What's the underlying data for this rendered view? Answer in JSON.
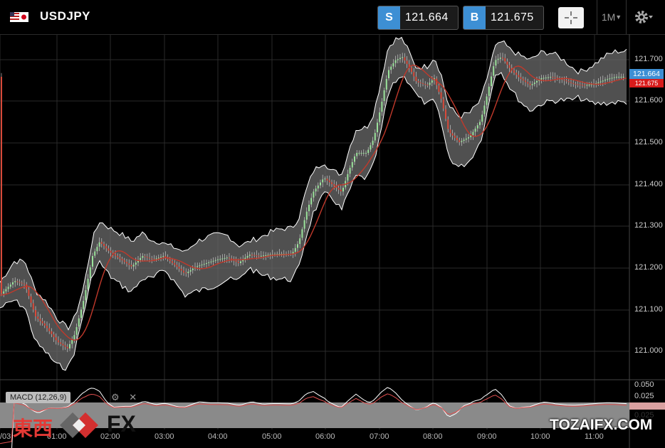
{
  "header": {
    "symbol": "USDJPY",
    "sell": {
      "tag": "S",
      "price": "121.664"
    },
    "buy": {
      "tag": "B",
      "price": "121.675"
    },
    "timeframe": "1M"
  },
  "chart": {
    "price_axis": [
      "121.700",
      "121.600",
      "121.500",
      "121.400",
      "121.300",
      "121.200",
      "121.100",
      "121.000"
    ],
    "current_sell_label": "121.664",
    "current_buy_label": "121.675",
    "time_axis": [
      "/03",
      "01:00",
      "02:00",
      "03:00",
      "04:00",
      "05:00",
      "06:00",
      "07:00",
      "08:00",
      "09:00",
      "10:00",
      "11:00"
    ],
    "macd_axis": [
      "0.050",
      "0.025",
      "0.025"
    ],
    "macd_label": "MACD (12,26,9)",
    "macd_icons": [
      "gear-icon",
      "close-icon"
    ]
  },
  "colors": {
    "accent": "#3d8fd4",
    "bear": "#d81b1b",
    "ma_line": "#c0392b",
    "band": "#ffffff"
  },
  "watermark": {
    "left_kanji": "東西",
    "left_fx": "FX",
    "right": "TOZAIFX.COM"
  }
}
